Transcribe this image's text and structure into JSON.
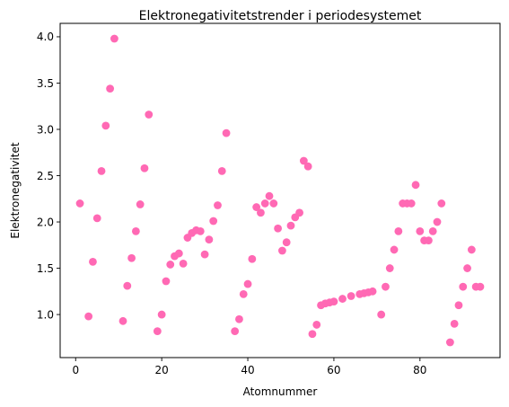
{
  "chart_data": {
    "type": "scatter",
    "title": "Elektronegativitetstrender i periodesystemet",
    "xlabel": "Atomnummer",
    "ylabel": "Elektronegativitet",
    "xlim": [
      -3.6,
      98.6
    ],
    "ylim": [
      0.535,
      4.145
    ],
    "xticks": [
      0,
      20,
      40,
      60,
      80
    ],
    "yticks": [
      1.0,
      1.5,
      2.0,
      2.5,
      3.0,
      3.5,
      4.0
    ],
    "xtick_labels": [
      "0",
      "20",
      "40",
      "60",
      "80"
    ],
    "ytick_labels": [
      "1.0",
      "1.5",
      "2.0",
      "2.5",
      "3.0",
      "3.5",
      "4.0"
    ],
    "grid": false,
    "legend": "none",
    "marker_color": "#ff69b4",
    "series": [
      {
        "points": [
          [
            1,
            2.2
          ],
          [
            3,
            0.98
          ],
          [
            4,
            1.57
          ],
          [
            5,
            2.04
          ],
          [
            6,
            2.55
          ],
          [
            7,
            3.04
          ],
          [
            8,
            3.44
          ],
          [
            9,
            3.98
          ],
          [
            11,
            0.93
          ],
          [
            12,
            1.31
          ],
          [
            13,
            1.61
          ],
          [
            14,
            1.9
          ],
          [
            15,
            2.19
          ],
          [
            16,
            2.58
          ],
          [
            17,
            3.16
          ],
          [
            19,
            0.82
          ],
          [
            20,
            1.0
          ],
          [
            21,
            1.36
          ],
          [
            22,
            1.54
          ],
          [
            23,
            1.63
          ],
          [
            24,
            1.66
          ],
          [
            25,
            1.55
          ],
          [
            26,
            1.83
          ],
          [
            27,
            1.88
          ],
          [
            28,
            1.91
          ],
          [
            29,
            1.9
          ],
          [
            30,
            1.65
          ],
          [
            31,
            1.81
          ],
          [
            32,
            2.01
          ],
          [
            33,
            2.18
          ],
          [
            34,
            2.55
          ],
          [
            35,
            2.96
          ],
          [
            37,
            0.82
          ],
          [
            38,
            0.95
          ],
          [
            39,
            1.22
          ],
          [
            40,
            1.33
          ],
          [
            41,
            1.6
          ],
          [
            42,
            2.16
          ],
          [
            43,
            2.1
          ],
          [
            44,
            2.2
          ],
          [
            45,
            2.28
          ],
          [
            46,
            2.2
          ],
          [
            47,
            1.93
          ],
          [
            48,
            1.69
          ],
          [
            49,
            1.78
          ],
          [
            50,
            1.96
          ],
          [
            51,
            2.05
          ],
          [
            52,
            2.1
          ],
          [
            53,
            2.66
          ],
          [
            54,
            2.6
          ],
          [
            55,
            0.79
          ],
          [
            56,
            0.89
          ],
          [
            57,
            1.1
          ],
          [
            58,
            1.12
          ],
          [
            59,
            1.13
          ],
          [
            60,
            1.14
          ],
          [
            62,
            1.17
          ],
          [
            64,
            1.2
          ],
          [
            66,
            1.22
          ],
          [
            67,
            1.23
          ],
          [
            68,
            1.24
          ],
          [
            69,
            1.25
          ],
          [
            71,
            1.0
          ],
          [
            72,
            1.3
          ],
          [
            73,
            1.5
          ],
          [
            74,
            1.7
          ],
          [
            75,
            1.9
          ],
          [
            76,
            2.2
          ],
          [
            77,
            2.2
          ],
          [
            78,
            2.2
          ],
          [
            79,
            2.4
          ],
          [
            80,
            1.9
          ],
          [
            81,
            1.8
          ],
          [
            82,
            1.8
          ],
          [
            83,
            1.9
          ],
          [
            84,
            2.0
          ],
          [
            85,
            2.2
          ],
          [
            87,
            0.7
          ],
          [
            88,
            0.9
          ],
          [
            89,
            1.1
          ],
          [
            90,
            1.3
          ],
          [
            91,
            1.5
          ],
          [
            92,
            1.7
          ],
          [
            93,
            1.3
          ],
          [
            94,
            1.3
          ]
        ]
      }
    ]
  }
}
